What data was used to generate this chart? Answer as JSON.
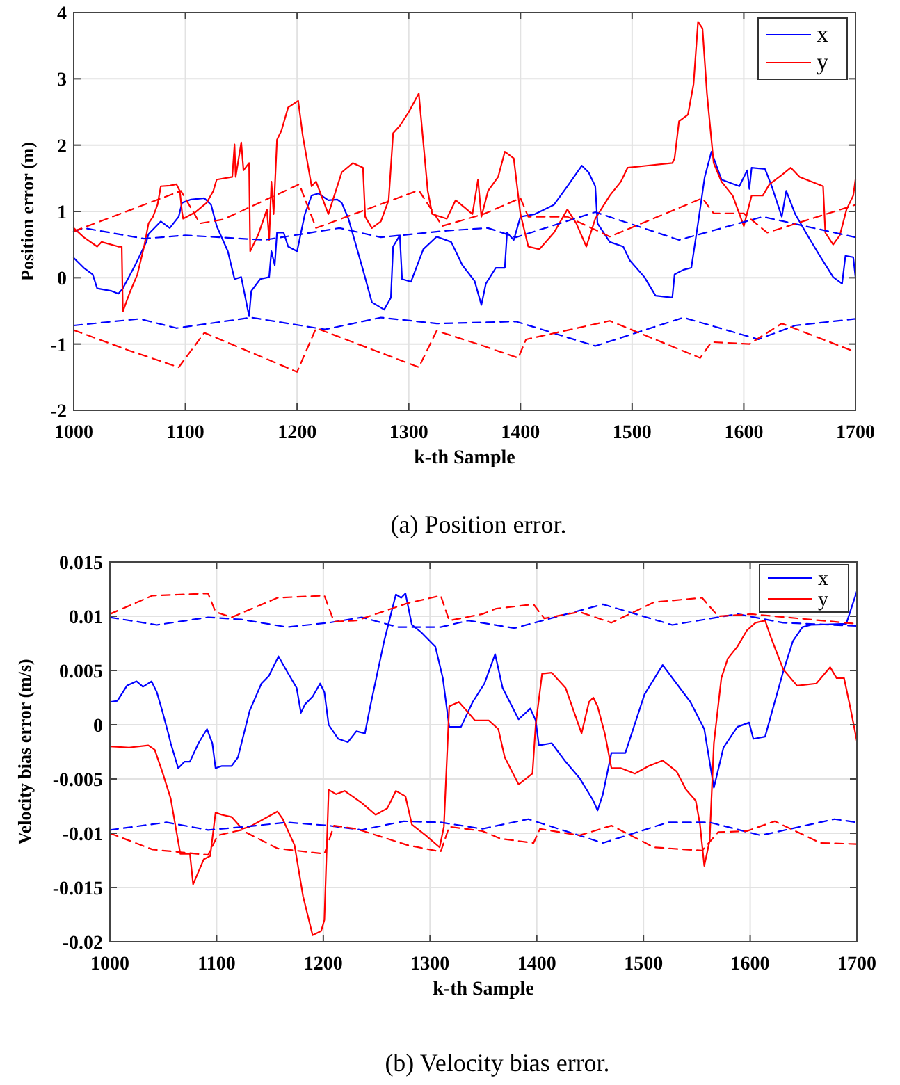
{
  "chart_data": [
    {
      "type": "line",
      "title": "(a) Position error.",
      "xlabel": "k-th Sample",
      "ylabel": "Position error (m)",
      "xlim": [
        1000,
        1700
      ],
      "xticks": [
        1000,
        1100,
        1200,
        1300,
        1400,
        1500,
        1600,
        1700
      ],
      "ylim": [
        -2,
        4
      ],
      "yticks": [
        -2,
        -1,
        0,
        1,
        2,
        3,
        4
      ],
      "grid": true,
      "legend": "top right",
      "line_style": "solid",
      "marker": "none",
      "series": [
        {
          "name": "x",
          "color": "#0000ff",
          "x": [
            1000,
            1009,
            1017,
            1021,
            1034,
            1040,
            1044,
            1055,
            1065,
            1067,
            1078,
            1086,
            1094,
            1097,
            1105,
            1117,
            1123,
            1128,
            1138,
            1144,
            1150,
            1157,
            1159,
            1167,
            1175,
            1177,
            1180,
            1182,
            1188,
            1192,
            1200,
            1207,
            1213,
            1219,
            1228,
            1236,
            1240,
            1246,
            1259,
            1267,
            1278,
            1284,
            1286,
            1292,
            1294,
            1302,
            1313,
            1325,
            1338,
            1348,
            1359,
            1365,
            1369,
            1378,
            1386,
            1388,
            1394,
            1400,
            1413,
            1430,
            1442,
            1455,
            1461,
            1467,
            1469,
            1480,
            1492,
            1498,
            1511,
            1521,
            1536,
            1538,
            1546,
            1553,
            1559,
            1565,
            1571,
            1580,
            1596,
            1603,
            1605,
            1607,
            1619,
            1625,
            1634,
            1638,
            1646,
            1657,
            1667,
            1680,
            1688,
            1691,
            1698,
            1700
          ],
          "values": [
            0.3,
            0.15,
            0.05,
            -0.16,
            -0.2,
            -0.24,
            -0.16,
            0.19,
            0.54,
            0.66,
            0.85,
            0.75,
            0.92,
            1.13,
            1.18,
            1.2,
            1.1,
            0.78,
            0.4,
            -0.02,
            0.01,
            -0.58,
            -0.2,
            -0.02,
            0.01,
            0.4,
            0.19,
            0.68,
            0.68,
            0.47,
            0.4,
            0.96,
            1.24,
            1.27,
            1.17,
            1.18,
            1.13,
            0.89,
            0.12,
            -0.37,
            -0.48,
            -0.3,
            0.47,
            0.64,
            -0.02,
            -0.06,
            0.43,
            0.62,
            0.54,
            0.19,
            -0.05,
            -0.41,
            -0.09,
            0.15,
            0.15,
            0.68,
            0.57,
            0.92,
            0.96,
            1.1,
            1.38,
            1.69,
            1.59,
            1.38,
            0.82,
            0.54,
            0.47,
            0.26,
            0.01,
            -0.27,
            -0.3,
            0.05,
            0.12,
            0.15,
            0.82,
            1.52,
            1.9,
            1.48,
            1.38,
            1.62,
            1.34,
            1.66,
            1.64,
            1.38,
            0.92,
            1.31,
            0.96,
            0.64,
            0.36,
            0.01,
            -0.09,
            0.33,
            0.31,
            0.01
          ]
        },
        {
          "name": "y",
          "color": "#ff0000",
          "x": [
            1000,
            1009,
            1021,
            1025,
            1040,
            1043,
            1044,
            1050,
            1057,
            1063,
            1067,
            1071,
            1075,
            1078,
            1086,
            1092,
            1095,
            1097,
            1098,
            1109,
            1119,
            1125,
            1128,
            1142,
            1144,
            1145,
            1150,
            1152,
            1157,
            1158,
            1165,
            1173,
            1175,
            1177,
            1179,
            1182,
            1186,
            1192,
            1201,
            1205,
            1213,
            1217,
            1228,
            1240,
            1250,
            1259,
            1261,
            1267,
            1275,
            1282,
            1286,
            1292,
            1300,
            1309,
            1317,
            1321,
            1334,
            1342,
            1350,
            1357,
            1362,
            1365,
            1371,
            1380,
            1386,
            1394,
            1400,
            1407,
            1417,
            1430,
            1442,
            1450,
            1459,
            1467,
            1480,
            1490,
            1496,
            1513,
            1536,
            1538,
            1542,
            1550,
            1555,
            1559,
            1563,
            1567,
            1573,
            1580,
            1590,
            1600,
            1607,
            1617,
            1623,
            1634,
            1642,
            1650,
            1671,
            1673,
            1680,
            1686,
            1692,
            1698,
            1700
          ],
          "values": [
            0.75,
            0.61,
            0.47,
            0.54,
            0.47,
            0.47,
            -0.51,
            -0.23,
            0.05,
            0.47,
            0.82,
            0.92,
            1.1,
            1.38,
            1.39,
            1.41,
            1.31,
            0.99,
            0.89,
            0.99,
            1.13,
            1.31,
            1.48,
            1.52,
            2.01,
            1.52,
            2.04,
            1.62,
            1.73,
            0.4,
            0.64,
            1.03,
            0.57,
            1.45,
            0.96,
            2.08,
            2.22,
            2.57,
            2.67,
            2.15,
            1.38,
            1.45,
            0.96,
            1.59,
            1.73,
            1.66,
            0.92,
            0.75,
            0.85,
            1.17,
            2.18,
            2.29,
            2.5,
            2.78,
            1.31,
            0.96,
            0.89,
            1.17,
            1.06,
            0.96,
            1.48,
            0.92,
            1.31,
            1.52,
            1.9,
            1.8,
            0.96,
            0.47,
            0.43,
            0.68,
            1.03,
            0.82,
            0.47,
            0.89,
            1.24,
            1.45,
            1.66,
            1.69,
            1.73,
            1.8,
            2.36,
            2.46,
            2.92,
            3.86,
            3.76,
            2.78,
            1.73,
            1.45,
            1.24,
            0.78,
            1.24,
            1.24,
            1.41,
            1.55,
            1.66,
            1.52,
            1.38,
            0.68,
            0.5,
            0.64,
            1.03,
            1.24,
            1.48
          ]
        },
        {
          "color": "#0000ff",
          "line_style": "dashed",
          "x": [
            1000,
            1009,
            1063,
            1100,
            1171,
            1238,
            1275,
            1334,
            1371,
            1396,
            1467,
            1542,
            1617,
            1700
          ],
          "values": [
            0.7,
            0.75,
            0.59,
            0.64,
            0.57,
            0.75,
            0.61,
            0.71,
            0.75,
            0.61,
            0.99,
            0.57,
            0.92,
            0.61
          ]
        },
        {
          "color": "#0000ff",
          "line_style": "dashed",
          "x": [
            1000,
            1059,
            1092,
            1159,
            1225,
            1275,
            1325,
            1396,
            1467,
            1546,
            1613,
            1646,
            1700
          ],
          "values": [
            -0.72,
            -0.62,
            -0.76,
            -0.6,
            -0.78,
            -0.6,
            -0.69,
            -0.66,
            -1.03,
            -0.6,
            -0.93,
            -0.72,
            -0.62
          ]
        },
        {
          "color": "#ff0000",
          "line_style": "dashed",
          "x": [
            1000,
            1096,
            1113,
            1134,
            1202,
            1217,
            1309,
            1330,
            1367,
            1400,
            1407,
            1442,
            1480,
            1563,
            1573,
            1600,
            1621,
            1700
          ],
          "values": [
            0.7,
            1.31,
            0.82,
            0.88,
            1.41,
            0.75,
            1.32,
            0.78,
            0.96,
            1.2,
            0.92,
            0.92,
            0.62,
            1.2,
            0.97,
            0.97,
            0.68,
            1.1
          ]
        },
        {
          "color": "#ff0000",
          "line_style": "dashed",
          "x": [
            1000,
            1050,
            1094,
            1117,
            1200,
            1217,
            1309,
            1325,
            1367,
            1398,
            1405,
            1480,
            1561,
            1571,
            1605,
            1634,
            1700
          ],
          "values": [
            -0.79,
            -1.1,
            -1.35,
            -0.83,
            -1.42,
            -0.76,
            -1.35,
            -0.8,
            -1.03,
            -1.21,
            -0.93,
            -0.65,
            -1.21,
            -0.97,
            -1.0,
            -0.69,
            -1.12
          ]
        }
      ]
    },
    {
      "type": "line",
      "title": "(b) Velocity bias error.",
      "xlabel": "k-th Sample",
      "ylabel": "Velocity bias error (m/s)",
      "xlim": [
        1000,
        1700
      ],
      "xticks": [
        1000,
        1100,
        1200,
        1300,
        1400,
        1500,
        1600,
        1700
      ],
      "ylim": [
        -0.02,
        0.015
      ],
      "yticks": [
        -0.02,
        -0.015,
        -0.01,
        -0.005,
        0,
        0.005,
        0.01,
        0.015
      ],
      "grid": true,
      "legend": "top right",
      "line_style": "solid",
      "marker": "none",
      "series": [
        {
          "name": "x",
          "color": "#0000ff",
          "x": [
            1000,
            1007,
            1016,
            1025,
            1031,
            1039,
            1044,
            1049,
            1055,
            1057,
            1064,
            1070,
            1075,
            1083,
            1091,
            1096,
            1099,
            1105,
            1114,
            1120,
            1131,
            1142,
            1149,
            1158,
            1166,
            1175,
            1179,
            1183,
            1190,
            1197,
            1201,
            1205,
            1214,
            1223,
            1231,
            1239,
            1244,
            1257,
            1268,
            1273,
            1277,
            1283,
            1292,
            1305,
            1312,
            1318,
            1329,
            1340,
            1351,
            1361,
            1368,
            1383,
            1394,
            1399,
            1402,
            1414,
            1427,
            1440,
            1453,
            1457,
            1462,
            1470,
            1483,
            1501,
            1518,
            1531,
            1544,
            1557,
            1566,
            1575,
            1588,
            1599,
            1603,
            1614,
            1623,
            1631,
            1640,
            1649,
            1657,
            1690,
            1700
          ],
          "values": [
            0.0021,
            0.0022,
            0.0036,
            0.004,
            0.0035,
            0.004,
            0.003,
            0.0013,
            -0.0009,
            -0.0017,
            -0.004,
            -0.0034,
            -0.0034,
            -0.0017,
            -0.0004,
            -0.0017,
            -0.004,
            -0.0038,
            -0.0038,
            -0.003,
            0.0013,
            0.0038,
            0.0045,
            0.0063,
            0.0049,
            0.0034,
            0.0011,
            0.0019,
            0.0026,
            0.0038,
            0.003,
            0,
            -0.0013,
            -0.0016,
            -0.0006,
            -0.0008,
            0.0017,
            0.0077,
            0.012,
            0.0117,
            0.0121,
            0.0092,
            0.0085,
            0.0072,
            0.0043,
            -0.0002,
            -0.0002,
            0.0021,
            0.0038,
            0.0065,
            0.0034,
            0.0005,
            0.0015,
            0.0004,
            -0.0019,
            -0.0017,
            -0.0034,
            -0.0049,
            -0.007,
            -0.0079,
            -0.0064,
            -0.0026,
            -0.0026,
            0.0028,
            0.0055,
            0.0038,
            0.0021,
            -0.0004,
            -0.0058,
            -0.0021,
            -0.0002,
            0.0002,
            -0.0013,
            -0.0011,
            0.0021,
            0.0049,
            0.0077,
            0.009,
            0.0092,
            0.0093,
            0.0123
          ]
        },
        {
          "name": "y",
          "color": "#ff0000",
          "x": [
            1000,
            1018,
            1036,
            1042,
            1049,
            1057,
            1066,
            1075,
            1078,
            1088,
            1094,
            1099,
            1105,
            1114,
            1124,
            1131,
            1144,
            1157,
            1162,
            1173,
            1181,
            1190,
            1198,
            1201,
            1205,
            1212,
            1220,
            1236,
            1249,
            1260,
            1268,
            1277,
            1283,
            1296,
            1309,
            1313,
            1318,
            1327,
            1336,
            1342,
            1355,
            1364,
            1370,
            1383,
            1396,
            1399,
            1405,
            1414,
            1427,
            1442,
            1449,
            1453,
            1457,
            1464,
            1470,
            1479,
            1492,
            1505,
            1518,
            1531,
            1540,
            1549,
            1553,
            1557,
            1562,
            1566,
            1573,
            1579,
            1588,
            1597,
            1605,
            1614,
            1620,
            1631,
            1644,
            1662,
            1675,
            1681,
            1688,
            1694,
            1700
          ],
          "values": [
            -0.002,
            -0.0021,
            -0.0019,
            -0.0023,
            -0.0043,
            -0.0068,
            -0.0119,
            -0.0119,
            -0.0147,
            -0.0124,
            -0.0121,
            -0.0081,
            -0.0083,
            -0.0085,
            -0.0096,
            -0.0094,
            -0.0087,
            -0.008,
            -0.0087,
            -0.0111,
            -0.0158,
            -0.0194,
            -0.019,
            -0.018,
            -0.006,
            -0.0064,
            -0.0061,
            -0.0072,
            -0.0083,
            -0.0077,
            -0.0061,
            -0.0066,
            -0.0092,
            -0.0102,
            -0.0113,
            -0.0094,
            0.0017,
            0.0021,
            0.0011,
            0.0004,
            0.0004,
            -0.0004,
            -0.003,
            -0.0055,
            -0.0045,
            0,
            0.0047,
            0.0048,
            0.0034,
            -0.0008,
            0.0021,
            0.0025,
            0.0017,
            -0.0009,
            -0.004,
            -0.004,
            -0.0045,
            -0.0038,
            -0.0033,
            -0.0043,
            -0.006,
            -0.007,
            -0.0092,
            -0.013,
            -0.0107,
            -0.0017,
            0.0043,
            0.0061,
            0.0072,
            0.0087,
            0.0094,
            0.0096,
            0.0079,
            0.0051,
            0.0036,
            0.0038,
            0.0053,
            0.0043,
            0.0043,
            0.0015,
            -0.0015
          ]
        },
        {
          "color": "#0000ff",
          "line_style": "dashed",
          "x": [
            1000,
            1044,
            1092,
            1123,
            1166,
            1205,
            1236,
            1270,
            1310,
            1336,
            1379,
            1462,
            1527,
            1588,
            1631,
            1700
          ],
          "values": [
            0.0099,
            0.0092,
            0.0099,
            0.0097,
            0.009,
            0.0094,
            0.0099,
            0.009,
            0.009,
            0.0096,
            0.0089,
            0.0111,
            0.0092,
            0.0102,
            0.0094,
            0.0091
          ]
        },
        {
          "color": "#0000ff",
          "line_style": "dashed",
          "x": [
            1000,
            1053,
            1092,
            1127,
            1166,
            1205,
            1236,
            1275,
            1310,
            1349,
            1392,
            1462,
            1523,
            1562,
            1610,
            1679,
            1700
          ],
          "values": [
            -0.0097,
            -0.009,
            -0.0097,
            -0.0094,
            -0.009,
            -0.0093,
            -0.0097,
            -0.0089,
            -0.009,
            -0.0096,
            -0.0087,
            -0.0109,
            -0.009,
            -0.009,
            -0.0102,
            -0.0087,
            -0.009
          ]
        },
        {
          "color": "#ff0000",
          "line_style": "dashed",
          "x": [
            1000,
            1040,
            1092,
            1099,
            1114,
            1157,
            1201,
            1210,
            1231,
            1279,
            1310,
            1318,
            1349,
            1362,
            1397,
            1407,
            1440,
            1470,
            1510,
            1555,
            1570,
            1601,
            1700
          ],
          "values": [
            0.0102,
            0.0119,
            0.0121,
            0.0104,
            0.0099,
            0.0117,
            0.0119,
            0.0095,
            0.0096,
            0.0112,
            0.0119,
            0.0096,
            0.0102,
            0.0107,
            0.0111,
            0.0098,
            0.0104,
            0.0094,
            0.0113,
            0.0117,
            0.01,
            0.0102,
            0.0093
          ]
        },
        {
          "color": "#ff0000",
          "line_style": "dashed",
          "x": [
            1000,
            1040,
            1092,
            1101,
            1123,
            1157,
            1201,
            1210,
            1231,
            1279,
            1310,
            1318,
            1349,
            1366,
            1397,
            1403,
            1440,
            1470,
            1510,
            1555,
            1570,
            1597,
            1623,
            1666,
            1700
          ],
          "values": [
            -0.01,
            -0.0115,
            -0.012,
            -0.0102,
            -0.0097,
            -0.0114,
            -0.0119,
            -0.0093,
            -0.0096,
            -0.0111,
            -0.0117,
            -0.0094,
            -0.0098,
            -0.0105,
            -0.0109,
            -0.0096,
            -0.0102,
            -0.0093,
            -0.0113,
            -0.0116,
            -0.0099,
            -0.0098,
            -0.0089,
            -0.0109,
            -0.011
          ]
        }
      ]
    }
  ]
}
